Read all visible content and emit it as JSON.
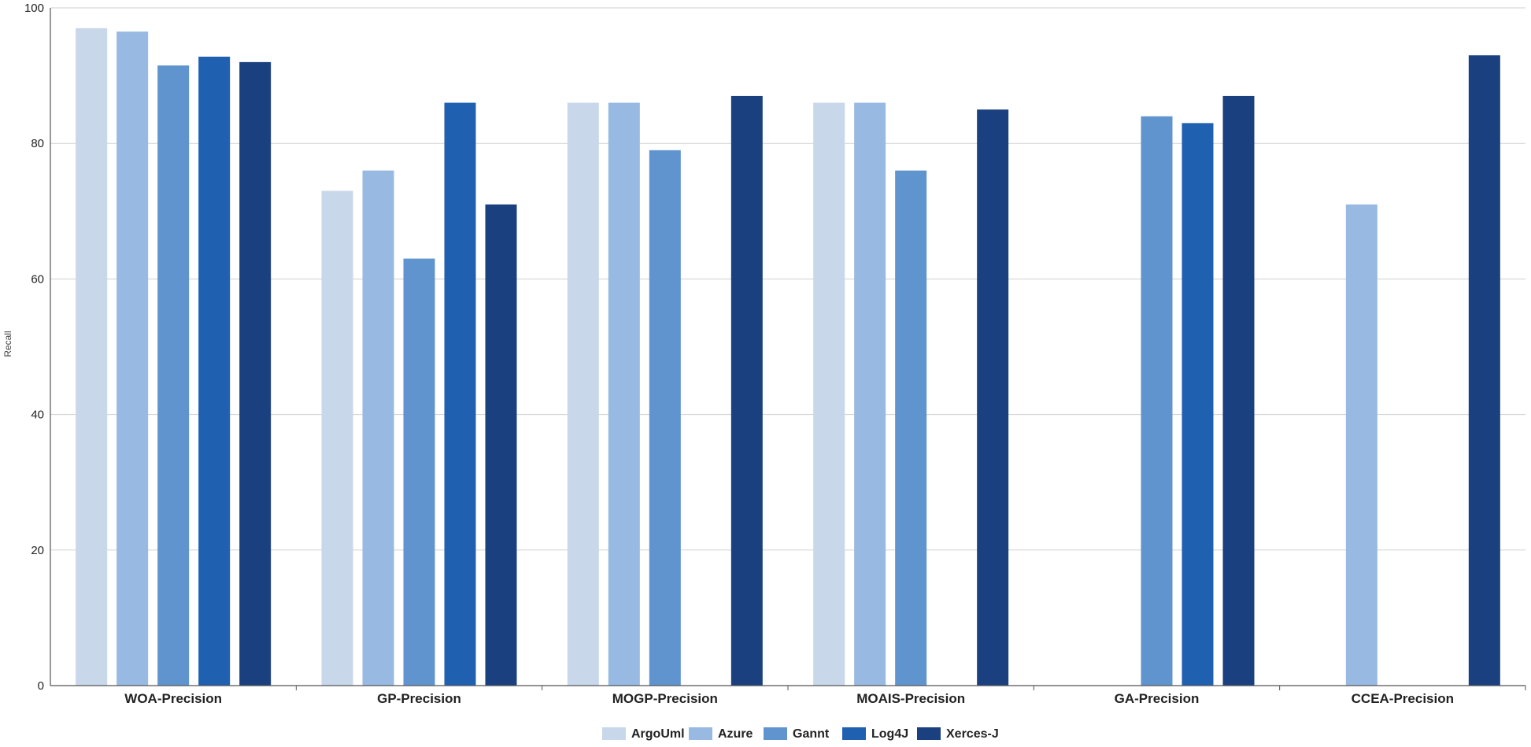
{
  "chart_data": {
    "type": "bar",
    "title": "",
    "xlabel": "",
    "ylabel": "Recall",
    "ylim": [
      0,
      100
    ],
    "yticks": [
      0,
      20,
      40,
      60,
      80,
      100
    ],
    "grid": true,
    "legend_position": "bottom",
    "categories": [
      "WOA-Precision",
      "GP-Precision",
      "MOGP-Precision",
      "MOAIS-Precision",
      "GA-Precision",
      "CCEA-Precision"
    ],
    "series": [
      {
        "name": "ArgoUml",
        "color": "#c8d7e9",
        "values": [
          97,
          73,
          86,
          86,
          null,
          null
        ]
      },
      {
        "name": "Azure",
        "color": "#98b9e2",
        "values": [
          96.5,
          76,
          86,
          86,
          null,
          71
        ]
      },
      {
        "name": "Gannt",
        "color": "#6094cf",
        "values": [
          91.5,
          63,
          79,
          76,
          84,
          null
        ]
      },
      {
        "name": "Log4J",
        "color": "#2060b0",
        "values": [
          92.8,
          86,
          null,
          null,
          83,
          null
        ]
      },
      {
        "name": "Xerces-J",
        "color": "#1a4080",
        "values": [
          92,
          71,
          87,
          85,
          87,
          93
        ]
      }
    ]
  }
}
